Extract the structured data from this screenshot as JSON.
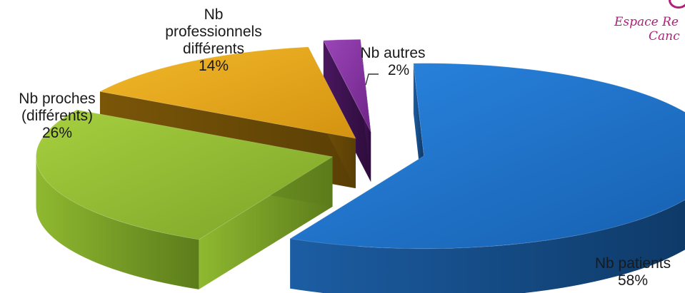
{
  "logo": {
    "line1": "Espace Re",
    "line2": "Canc",
    "color": "#b01f7a"
  },
  "chart_data": {
    "type": "pie",
    "style": "3d-exploded",
    "series": [
      {
        "slices": [
          {
            "name": "Nb patients",
            "value": 58,
            "pct_label": "58%",
            "color": "#1f6fc5"
          },
          {
            "name": "Nb proches (différents)",
            "value": 26,
            "pct_label": "26%",
            "color": "#8db92e"
          },
          {
            "name": "Nb professionnels différents",
            "value": 14,
            "pct_label": "14%",
            "color": "#e6a613"
          },
          {
            "name": "Nb autres",
            "value": 2,
            "pct_label": "2%",
            "color": "#7b2c97"
          }
        ]
      }
    ],
    "labels": {
      "patients": {
        "line1": "Nb patients",
        "line2": "58%"
      },
      "proches": {
        "line1": "Nb proches",
        "line2": "(différents)",
        "line3": "26%"
      },
      "professionnels": {
        "line1": "Nb",
        "line2": "professionnels",
        "line3": "différents",
        "line4": "14%"
      },
      "autres": {
        "line1": "Nb autres",
        "line2": "2%"
      }
    }
  }
}
